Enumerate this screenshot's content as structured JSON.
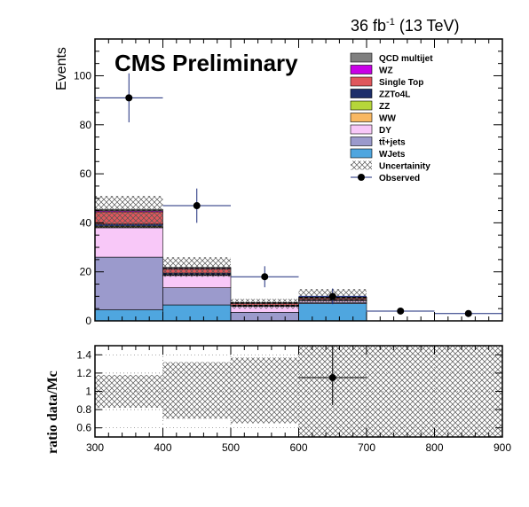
{
  "header": {
    "lumi_main": "36 fb",
    "lumi_sup": "-1",
    "lumi_rest": " (13 TeV)",
    "experiment": "CMS Preliminary"
  },
  "chart_data": [
    {
      "type": "bar",
      "stacked": true,
      "ylabel": "Events",
      "ylim": [
        0,
        115
      ],
      "yticks": [
        0,
        20,
        40,
        60,
        80,
        100
      ],
      "xlim": [
        300,
        900
      ],
      "bin_edges": [
        300,
        400,
        500,
        600,
        700,
        800,
        900
      ],
      "series": [
        {
          "name": "WJets",
          "color": "#4fa6df",
          "values": [
            4.5,
            6.5,
            0,
            7,
            0,
            0
          ]
        },
        {
          "name": "tt̄+jets",
          "color": "#9b9acc",
          "values": [
            21.5,
            7,
            3.5,
            0.5,
            0,
            0
          ]
        },
        {
          "name": "DY",
          "color": "#f8c8f8",
          "values": [
            12,
            5,
            2.5,
            0.8,
            0,
            0
          ]
        },
        {
          "name": "WW",
          "color": "#f8b862",
          "values": [
            0.3,
            0.2,
            0.1,
            0.1,
            0,
            0
          ]
        },
        {
          "name": "ZZ",
          "color": "#b6d63a",
          "values": [
            0.3,
            0.2,
            0.1,
            0.1,
            0,
            0
          ]
        },
        {
          "name": "ZZTo4L",
          "color": "#1d2e6b",
          "values": [
            0.9,
            0.6,
            0.2,
            0.2,
            0,
            0
          ]
        },
        {
          "name": "Single Top",
          "color": "#e0575c",
          "values": [
            5,
            1.7,
            0.7,
            0.6,
            0,
            0
          ]
        },
        {
          "name": "WZ",
          "color": "#c800e6",
          "values": [
            0.5,
            0.3,
            0.2,
            0.2,
            0,
            0
          ]
        },
        {
          "name": "QCD multijet",
          "color": "#7f7f7f",
          "values": [
            0.5,
            0.3,
            0.2,
            0.2,
            0,
            0
          ]
        }
      ],
      "uncertainty": {
        "name": "Uncertainity",
        "low": [
          38,
          18,
          5,
          7,
          0,
          0
        ],
        "high": [
          51,
          26,
          9,
          13,
          0,
          0
        ]
      },
      "observed": {
        "name": "Observed",
        "x": [
          350,
          450,
          550,
          650,
          750,
          850
        ],
        "y": [
          91,
          47,
          18,
          10,
          4,
          3
        ],
        "err": [
          10,
          7,
          4.3,
          3.2,
          0,
          0
        ]
      }
    },
    {
      "type": "scatter",
      "ylabel": "ratio data/Mc",
      "xlim": [
        300,
        900
      ],
      "ylim": [
        0.5,
        1.5
      ],
      "yticks": [
        0.6,
        0.8,
        1,
        1.2,
        1.4
      ],
      "ytick_labels": [
        "0.6",
        "0.8",
        "1",
        "1.2",
        "1.4"
      ],
      "xticks": [
        300,
        400,
        500,
        600,
        700,
        800,
        900
      ],
      "xtick_labels": [
        "300",
        "400",
        "500",
        "600",
        "700",
        "800",
        "900"
      ],
      "uncertainty_band": {
        "bin_edges": [
          300,
          400,
          500,
          600,
          700,
          800,
          900
        ],
        "low": [
          0.82,
          0.7,
          0.65,
          0.5,
          0.5,
          0.5
        ],
        "high": [
          1.18,
          1.32,
          1.37,
          1.5,
          1.5,
          1.5
        ]
      },
      "points": {
        "x": [
          650
        ],
        "y": [
          1.15
        ],
        "xerr": [
          50
        ],
        "yerr_low": [
          0.3
        ],
        "yerr_high": [
          0.35
        ]
      }
    }
  ]
}
